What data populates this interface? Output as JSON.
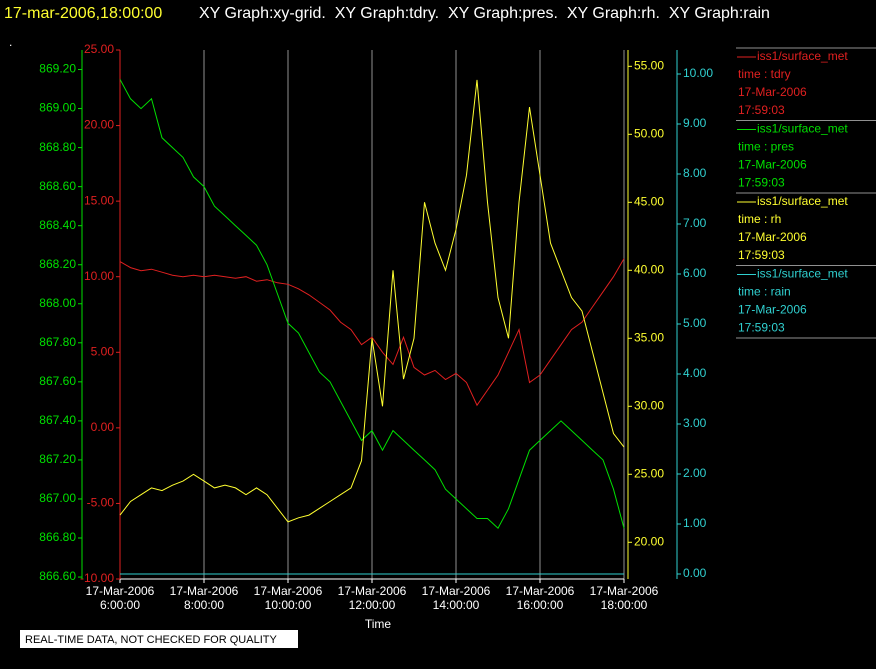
{
  "chart_data": {
    "type": "line",
    "title": "17-mar-2006,18:00:00",
    "subtitle": "XY Graph:xy-grid.  XY Graph:tdry.  XY Graph:pres.  XY Graph:rh.  XY Graph:rain",
    "note": ".",
    "xlabel": "Time",
    "footer": "REAL-TIME DATA, NOT CHECKED FOR QUALITY",
    "xlim": [
      6,
      18
    ],
    "xticks": [
      {
        "value": 6,
        "label": "17-Mar-2006\n6:00:00"
      },
      {
        "value": 8,
        "label": "17-Mar-2006\n8:00:00"
      },
      {
        "value": 10,
        "label": "17-Mar-2006\n10:00:00"
      },
      {
        "value": 12,
        "label": "17-Mar-2006\n12:00:00"
      },
      {
        "value": 14,
        "label": "17-Mar-2006\n14:00:00"
      },
      {
        "value": 16,
        "label": "17-Mar-2006\n16:00:00"
      },
      {
        "value": 18,
        "label": "17-Mar-2006\n18:00:00"
      }
    ],
    "grid": true,
    "x": [
      6,
      6.25,
      6.5,
      6.75,
      7,
      7.25,
      7.5,
      7.75,
      8,
      8.25,
      8.5,
      8.75,
      9,
      9.25,
      9.5,
      9.75,
      10,
      10.25,
      10.5,
      10.75,
      11,
      11.25,
      11.5,
      11.75,
      12,
      12.25,
      12.5,
      12.75,
      13,
      13.25,
      13.5,
      13.75,
      14,
      14.25,
      14.5,
      14.75,
      15,
      15.25,
      15.5,
      15.75,
      16,
      16.25,
      16.5,
      16.75,
      17,
      17.25,
      17.5,
      17.75,
      18
    ],
    "ylim": [
      -10,
      25
    ],
    "yticks": [
      {
        "value": -10,
        "label": "-10.00"
      },
      {
        "value": -5,
        "label": "-5.00"
      },
      {
        "value": 0,
        "label": "0.00"
      },
      {
        "value": 5,
        "label": "5.00"
      },
      {
        "value": 10,
        "label": "10.00"
      },
      {
        "value": 15,
        "label": "15.00"
      },
      {
        "value": 20,
        "label": "20.00"
      },
      {
        "value": 25,
        "label": "25.00"
      }
    ],
    "y2lim": [
      866.59,
      869.3
    ],
    "y2ticks": [
      {
        "value": 866.6,
        "label": "866.60"
      },
      {
        "value": 866.8,
        "label": "866.80"
      },
      {
        "value": 867,
        "label": "867.00"
      },
      {
        "value": 867.2,
        "label": "867.20"
      },
      {
        "value": 867.4,
        "label": "867.40"
      },
      {
        "value": 867.6,
        "label": "867.60"
      },
      {
        "value": 867.8,
        "label": "867.80"
      },
      {
        "value": 868,
        "label": "868.00"
      },
      {
        "value": 868.2,
        "label": "868.20"
      },
      {
        "value": 868.4,
        "label": "868.40"
      },
      {
        "value": 868.6,
        "label": "868.60"
      },
      {
        "value": 868.8,
        "label": "868.80"
      },
      {
        "value": 869,
        "label": "869.00"
      },
      {
        "value": 869.2,
        "label": "869.20"
      }
    ],
    "y3lim": [
      17.3,
      56.2
    ],
    "y3ticks": [
      {
        "value": 20,
        "label": "20.00"
      },
      {
        "value": 25,
        "label": "25.00"
      },
      {
        "value": 30,
        "label": "30.00"
      },
      {
        "value": 35,
        "label": "35.00"
      },
      {
        "value": 40,
        "label": "40.00"
      },
      {
        "value": 45,
        "label": "45.00"
      },
      {
        "value": 50,
        "label": "50.00"
      },
      {
        "value": 55,
        "label": "55.00"
      }
    ],
    "y4lim": [
      -0.1,
      10.48
    ],
    "y4ticks": [
      {
        "value": 0,
        "label": "0.00"
      },
      {
        "value": 1,
        "label": "1.00"
      },
      {
        "value": 2,
        "label": "2.00"
      },
      {
        "value": 3,
        "label": "3.00"
      },
      {
        "value": 4,
        "label": "4.00"
      },
      {
        "value": 5,
        "label": "5.00"
      },
      {
        "value": 6,
        "label": "6.00"
      },
      {
        "value": 7,
        "label": "7.00"
      },
      {
        "value": 8,
        "label": "8.00"
      },
      {
        "value": 9,
        "label": "9.00"
      },
      {
        "value": 10,
        "label": "10.00"
      }
    ],
    "series": [
      {
        "name": "iss1/surface_met",
        "legend_lines": [
          "time : tdry",
          "17-Mar-2006",
          "17:59:03"
        ],
        "color": "#e02020",
        "axis": "y",
        "values": [
          11.0,
          10.6,
          10.4,
          10.5,
          10.3,
          10.1,
          10.0,
          10.1,
          10.0,
          10.1,
          10.0,
          9.9,
          10.0,
          9.7,
          9.8,
          9.6,
          9.5,
          9.2,
          8.8,
          8.3,
          7.8,
          7.0,
          6.5,
          5.5,
          6.0,
          5.0,
          4.2,
          6.0,
          4.0,
          3.5,
          3.8,
          3.2,
          3.6,
          3.0,
          1.5,
          2.5,
          3.5,
          5.0,
          6.5,
          3.0,
          3.5,
          4.5,
          5.5,
          6.5,
          7.0,
          8.0,
          9.0,
          10.0,
          11.2
        ]
      },
      {
        "name": "iss1/surface_met",
        "legend_lines": [
          "time : pres",
          "17-Mar-2006",
          "17:59:03"
        ],
        "color": "#00e000",
        "axis": "y2",
        "values": [
          869.15,
          869.05,
          869.0,
          869.05,
          868.85,
          868.8,
          868.75,
          868.65,
          868.6,
          868.5,
          868.45,
          868.4,
          868.35,
          868.3,
          868.2,
          868.05,
          867.9,
          867.85,
          867.75,
          867.65,
          867.6,
          867.5,
          867.4,
          867.3,
          867.35,
          867.25,
          867.35,
          867.3,
          867.25,
          867.2,
          867.15,
          867.05,
          867.0,
          866.95,
          866.9,
          866.9,
          866.85,
          866.95,
          867.1,
          867.25,
          867.3,
          867.35,
          867.4,
          867.35,
          867.3,
          867.25,
          867.2,
          867.05,
          866.85
        ]
      },
      {
        "name": "iss1/surface_met",
        "legend_lines": [
          "time : rh",
          "17-Mar-2006",
          "17:59:03"
        ],
        "color": "#ffff30",
        "axis": "y3",
        "values": [
          22,
          23,
          23.5,
          24,
          23.8,
          24.2,
          24.5,
          25,
          24.5,
          24,
          24.2,
          24,
          23.5,
          24,
          23.5,
          22.5,
          21.5,
          21.8,
          22,
          22.5,
          23,
          23.5,
          24,
          26,
          35,
          30,
          40,
          32,
          35,
          45,
          42,
          40,
          43,
          47,
          54,
          45,
          38,
          35,
          45,
          52,
          47,
          42,
          40,
          38,
          37,
          34,
          31,
          28,
          27
        ]
      },
      {
        "name": "iss1/surface_met",
        "legend_lines": [
          "time : rain",
          "17-Mar-2006",
          "17:59:03"
        ],
        "color": "#30d0d0",
        "axis": "y4",
        "values": [
          0,
          0,
          0,
          0,
          0,
          0,
          0,
          0,
          0,
          0,
          0,
          0,
          0,
          0,
          0,
          0,
          0,
          0,
          0,
          0,
          0,
          0,
          0,
          0,
          0,
          0,
          0,
          0,
          0,
          0,
          0,
          0,
          0,
          0,
          0,
          0,
          0,
          0,
          0,
          0,
          0,
          0,
          0,
          0,
          0,
          0,
          0,
          0,
          0
        ]
      }
    ]
  }
}
